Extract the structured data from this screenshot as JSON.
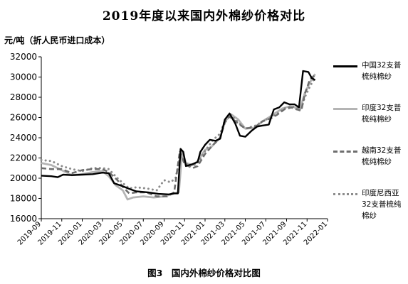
{
  "chart_data": {
    "type": "line",
    "title": "2019年度以来国内外棉纱价格对比",
    "ylabel": "元/吨（折人民币进口成本）",
    "caption": "图3　国内外棉纱价格对比图",
    "ylim": [
      16000,
      32000
    ],
    "yticks": [
      "16000",
      "18000",
      "20000",
      "22000",
      "24000",
      "26000",
      "28000",
      "30000",
      "32000"
    ],
    "xlim": [
      "2019-09",
      "2022-01"
    ],
    "xticks": [
      "2019-09",
      "2019-11",
      "2020-01",
      "2020-03",
      "2020-05",
      "2020-07",
      "2020-09",
      "2020-11",
      "2021-01",
      "2021-03",
      "2021-05",
      "2021-07",
      "2021-09",
      "2021-11",
      "2022-01"
    ],
    "grid": false,
    "legend_position": "right",
    "series": [
      {
        "name": "中国32支普梳纯棉纱",
        "style": "solid",
        "color": "#000000",
        "points": [
          [
            "2019-09-01",
            20250
          ],
          [
            "2019-10-01",
            20200
          ],
          [
            "2019-10-20",
            20100
          ],
          [
            "2019-11-05",
            20350
          ],
          [
            "2019-12-01",
            20300
          ],
          [
            "2020-01-01",
            20350
          ],
          [
            "2020-02-01",
            20400
          ],
          [
            "2020-03-01",
            20550
          ],
          [
            "2020-03-20",
            20500
          ],
          [
            "2020-04-05",
            19500
          ],
          [
            "2020-05-01",
            19200
          ],
          [
            "2020-05-20",
            18950
          ],
          [
            "2020-06-10",
            18700
          ],
          [
            "2020-07-15",
            18600
          ],
          [
            "2020-08-15",
            18450
          ],
          [
            "2020-09-15",
            18400
          ],
          [
            "2020-10-01",
            18500
          ],
          [
            "2020-10-12",
            18500
          ],
          [
            "2020-10-20",
            22900
          ],
          [
            "2020-10-28",
            22600
          ],
          [
            "2020-11-05",
            21200
          ],
          [
            "2020-11-25",
            21400
          ],
          [
            "2020-12-10",
            21600
          ],
          [
            "2020-12-18",
            22600
          ],
          [
            "2021-01-01",
            23300
          ],
          [
            "2021-01-15",
            23800
          ],
          [
            "2021-02-01",
            23700
          ],
          [
            "2021-02-15",
            23900
          ],
          [
            "2021-03-01",
            25800
          ],
          [
            "2021-03-15",
            26400
          ],
          [
            "2021-04-01",
            25400
          ],
          [
            "2021-04-15",
            24200
          ],
          [
            "2021-05-01",
            24100
          ],
          [
            "2021-05-20",
            24700
          ],
          [
            "2021-06-05",
            25100
          ],
          [
            "2021-06-20",
            25200
          ],
          [
            "2021-07-10",
            25300
          ],
          [
            "2021-07-25",
            26800
          ],
          [
            "2021-08-10",
            27000
          ],
          [
            "2021-08-25",
            27500
          ],
          [
            "2021-09-10",
            27300
          ],
          [
            "2021-09-25",
            27300
          ],
          [
            "2021-10-08",
            27000
          ],
          [
            "2021-10-20",
            30600
          ],
          [
            "2021-11-05",
            30500
          ],
          [
            "2021-11-15",
            29900
          ],
          [
            "2021-11-25",
            29700
          ]
        ]
      },
      {
        "name": "印度32支普梳纯棉纱",
        "style": "solid",
        "color": "#b4b4b4",
        "points": [
          [
            "2019-09-01",
            21500
          ],
          [
            "2019-10-01",
            21300
          ],
          [
            "2019-11-01",
            20800
          ],
          [
            "2019-12-01",
            20300
          ],
          [
            "2020-01-01",
            20400
          ],
          [
            "2020-02-01",
            20600
          ],
          [
            "2020-03-01",
            20700
          ],
          [
            "2020-03-20",
            20200
          ],
          [
            "2020-04-10",
            19300
          ],
          [
            "2020-05-01",
            18800
          ],
          [
            "2020-05-15",
            17900
          ],
          [
            "2020-06-01",
            18100
          ],
          [
            "2020-07-01",
            18200
          ],
          [
            "2020-08-01",
            18100
          ],
          [
            "2020-09-01",
            18200
          ],
          [
            "2020-10-01",
            18500
          ],
          [
            "2020-10-15",
            18600
          ],
          [
            "2020-10-25",
            22700
          ],
          [
            "2020-11-05",
            21500
          ],
          [
            "2020-11-25",
            21300
          ],
          [
            "2020-12-10",
            21700
          ],
          [
            "2021-01-01",
            22800
          ],
          [
            "2021-01-20",
            23100
          ],
          [
            "2021-02-15",
            24000
          ],
          [
            "2021-03-01",
            25600
          ],
          [
            "2021-03-20",
            26300
          ],
          [
            "2021-04-10",
            25800
          ],
          [
            "2021-05-01",
            24900
          ],
          [
            "2021-06-01",
            25000
          ],
          [
            "2021-06-20",
            25600
          ],
          [
            "2021-07-10",
            26000
          ],
          [
            "2021-08-01",
            26500
          ],
          [
            "2021-08-20",
            26900
          ],
          [
            "2021-09-10",
            27100
          ],
          [
            "2021-09-25",
            27000
          ],
          [
            "2021-10-10",
            26700
          ],
          [
            "2021-10-25",
            28400
          ],
          [
            "2021-11-10",
            29500
          ],
          [
            "2021-11-25",
            30300
          ]
        ]
      },
      {
        "name": "越南32支普梳纯棉纱",
        "style": "dashed",
        "color": "#6e6e6e",
        "points": [
          [
            "2019-09-01",
            21000
          ],
          [
            "2019-10-01",
            20900
          ],
          [
            "2019-11-01",
            20900
          ],
          [
            "2019-12-01",
            20500
          ],
          [
            "2020-01-01",
            20800
          ],
          [
            "2020-02-01",
            20900
          ],
          [
            "2020-03-01",
            20900
          ],
          [
            "2020-03-20",
            20600
          ],
          [
            "2020-04-15",
            19800
          ],
          [
            "2020-05-05",
            19000
          ],
          [
            "2020-05-20",
            18500
          ],
          [
            "2020-06-10",
            18600
          ],
          [
            "2020-07-10",
            18600
          ],
          [
            "2020-08-10",
            18200
          ],
          [
            "2020-09-10",
            18200
          ],
          [
            "2020-10-01",
            18600
          ],
          [
            "2020-10-18",
            22700
          ],
          [
            "2020-11-01",
            21400
          ],
          [
            "2020-11-25",
            21000
          ],
          [
            "2020-12-10",
            21200
          ],
          [
            "2021-01-01",
            22400
          ],
          [
            "2021-01-25",
            23300
          ],
          [
            "2021-02-15",
            24000
          ],
          [
            "2021-03-01",
            25500
          ],
          [
            "2021-03-15",
            26100
          ],
          [
            "2021-04-10",
            25400
          ],
          [
            "2021-05-01",
            24900
          ],
          [
            "2021-06-01",
            25100
          ],
          [
            "2021-06-20",
            25600
          ],
          [
            "2021-07-15",
            25900
          ],
          [
            "2021-08-05",
            26300
          ],
          [
            "2021-08-25",
            26800
          ],
          [
            "2021-09-15",
            27000
          ],
          [
            "2021-10-01",
            26800
          ],
          [
            "2021-10-15",
            26700
          ],
          [
            "2021-10-25",
            28300
          ],
          [
            "2021-11-10",
            29800
          ],
          [
            "2021-11-25",
            30200
          ]
        ]
      },
      {
        "name": "印度尼西亚32支普梳纯棉纱",
        "style": "dotted",
        "color": "#8c8c8c",
        "points": [
          [
            "2019-09-01",
            21800
          ],
          [
            "2019-10-01",
            21700
          ],
          [
            "2019-11-01",
            21200
          ],
          [
            "2019-12-01",
            20900
          ],
          [
            "2020-01-01",
            20700
          ],
          [
            "2020-02-01",
            21000
          ],
          [
            "2020-03-01",
            21000
          ],
          [
            "2020-03-20",
            20900
          ],
          [
            "2020-04-15",
            20000
          ],
          [
            "2020-05-05",
            19400
          ],
          [
            "2020-05-20",
            19000
          ],
          [
            "2020-06-10",
            19100
          ],
          [
            "2020-07-10",
            19000
          ],
          [
            "2020-08-10",
            18800
          ],
          [
            "2020-09-01",
            19800
          ],
          [
            "2020-09-20",
            19600
          ],
          [
            "2020-10-05",
            20000
          ],
          [
            "2020-10-20",
            22300
          ],
          [
            "2020-11-01",
            21500
          ],
          [
            "2020-11-25",
            21200
          ],
          [
            "2020-12-10",
            21500
          ],
          [
            "2021-01-01",
            22700
          ],
          [
            "2021-01-25",
            23800
          ],
          [
            "2021-02-15",
            24400
          ],
          [
            "2021-03-01",
            25700
          ],
          [
            "2021-03-15",
            26400
          ],
          [
            "2021-04-10",
            25500
          ],
          [
            "2021-05-01",
            24900
          ],
          [
            "2021-06-01",
            25200
          ],
          [
            "2021-06-25",
            25700
          ],
          [
            "2021-07-15",
            26000
          ],
          [
            "2021-08-05",
            26400
          ],
          [
            "2021-08-25",
            26900
          ],
          [
            "2021-09-15",
            27100
          ],
          [
            "2021-10-01",
            27000
          ],
          [
            "2021-10-15",
            26900
          ],
          [
            "2021-10-25",
            28000
          ],
          [
            "2021-11-10",
            29100
          ],
          [
            "2021-11-25",
            30000
          ]
        ]
      }
    ]
  }
}
